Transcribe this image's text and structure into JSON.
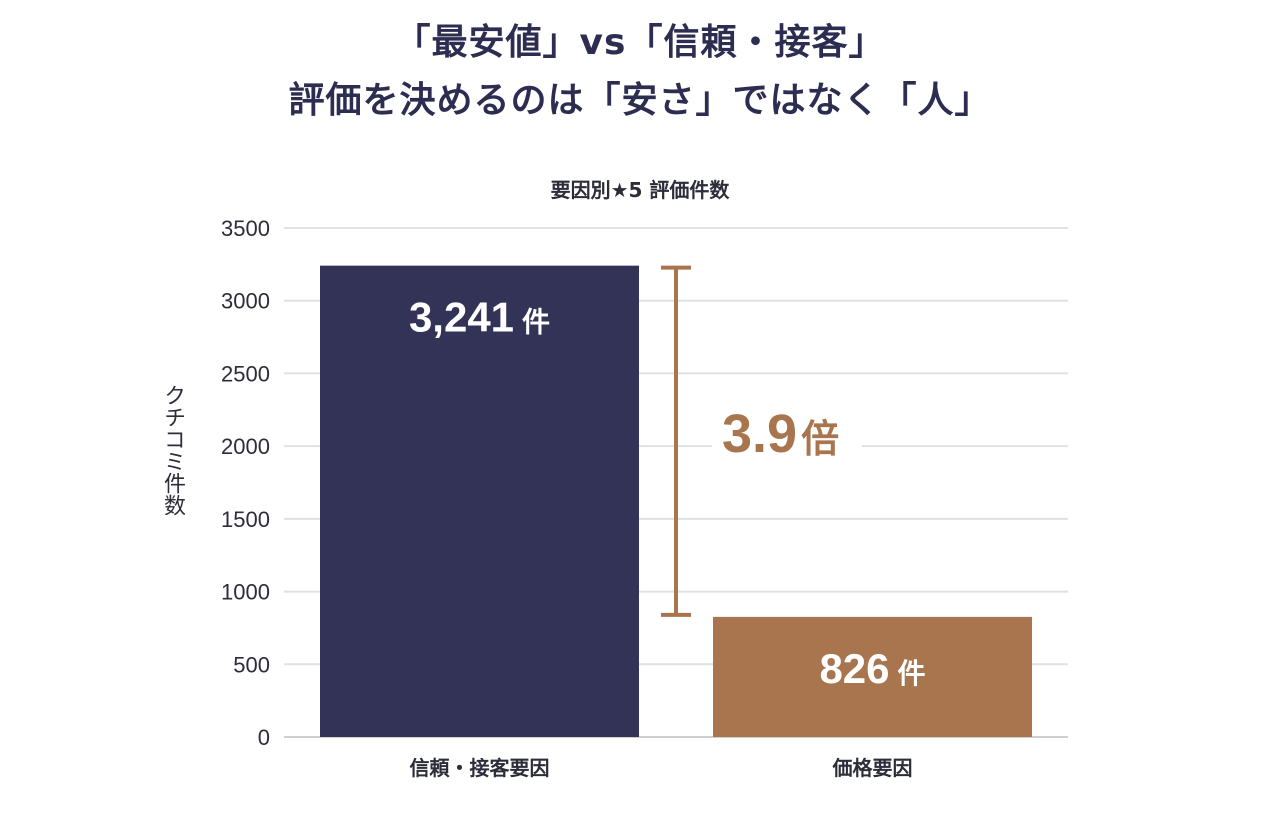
{
  "title_lines": [
    "「最安値」vs「信頼・接客」",
    "評価を決めるのは「安さ」ではなく「人」"
  ],
  "chart_data": {
    "type": "bar",
    "title": "要因別★5 評価件数",
    "ylabel": "クチコミ件数",
    "xlabel": "",
    "categories": [
      "信頼・接客要因",
      "価格要因"
    ],
    "values": [
      3241,
      826
    ],
    "value_labels": [
      "3,241",
      "826"
    ],
    "unit": "件",
    "ylim": [
      0,
      3500
    ],
    "yticks": [
      0,
      500,
      1000,
      1500,
      2000,
      2500,
      3000,
      3500
    ],
    "grid": true,
    "bar_colors": [
      "#333358",
      "#a8754f"
    ],
    "annotation": {
      "text": "3.9",
      "unit": "倍",
      "color": "#a8754f"
    }
  }
}
